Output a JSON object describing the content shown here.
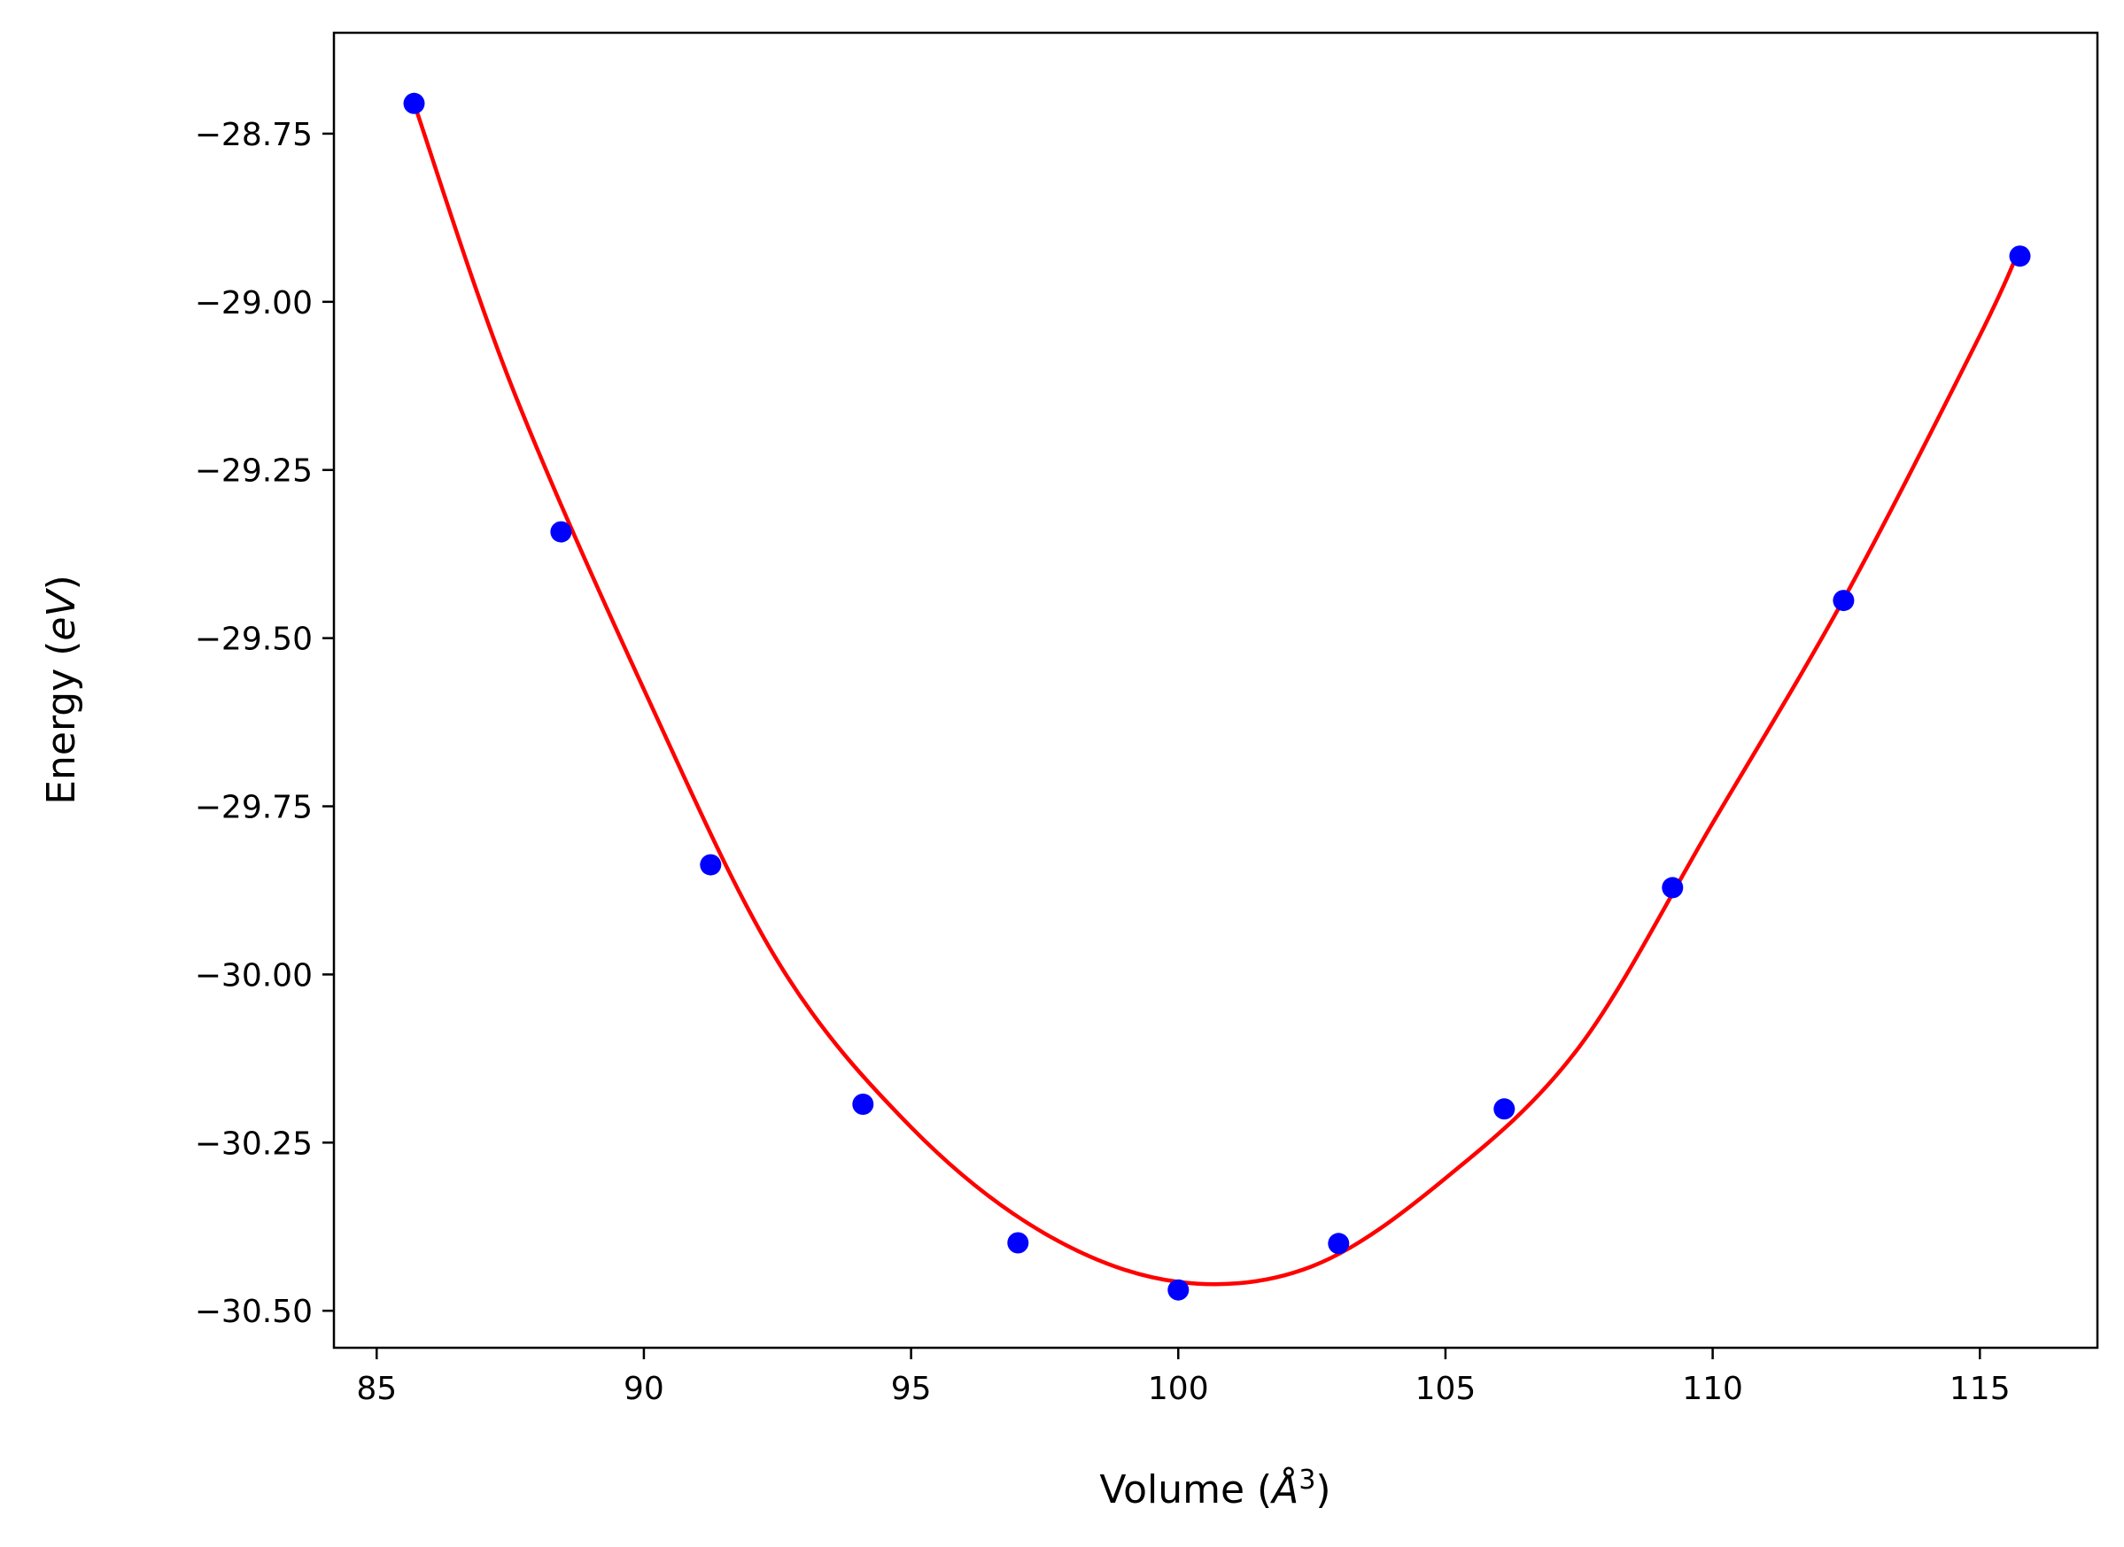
{
  "chart_data": {
    "type": "scatter",
    "title": "",
    "xlabel": "Volume (Å³)",
    "xlabel_parts": {
      "prefix": "Volume (",
      "symbol": "Å",
      "sup": "3",
      "suffix": ")"
    },
    "ylabel": "Energy (eV)",
    "ylabel_parts": {
      "prefix": "Energy (",
      "unit": "eV",
      "suffix": ")"
    },
    "xlim": [
      84.2,
      117.2
    ],
    "ylim": [
      -30.555,
      -28.6
    ],
    "x_ticks": [
      85,
      90,
      95,
      100,
      105,
      110,
      115
    ],
    "x_tick_labels": [
      "85",
      "90",
      "95",
      "100",
      "105",
      "110",
      "115"
    ],
    "y_ticks": [
      -28.75,
      -29.0,
      -29.25,
      -29.5,
      -29.75,
      -30.0,
      -30.25,
      -30.5
    ],
    "y_tick_labels": [
      "−28.75",
      "−29.00",
      "−29.25",
      "−29.50",
      "−29.75",
      "−30.00",
      "−30.25",
      "−30.50"
    ],
    "grid": false,
    "legend": "none",
    "series": [
      {
        "kind": "points",
        "color": "#0000ff",
        "x": [
          85.7,
          88.45,
          91.25,
          94.1,
          97.0,
          100.0,
          103.0,
          106.1,
          109.25,
          112.45,
          115.75
        ],
        "y": [
          -28.705,
          -29.342,
          -29.837,
          -30.193,
          -30.399,
          -30.469,
          -30.4,
          -30.2,
          -29.871,
          -29.444,
          -28.932
        ]
      },
      {
        "kind": "fit-curve",
        "color": "#ff0000",
        "x": [
          85.7,
          87.5,
          90.0,
          92.5,
          95.0,
          97.5,
          100.0,
          102.5,
          105.0,
          107.5,
          110.0,
          112.5,
          115.0,
          115.75
        ],
        "y": [
          -28.705,
          -29.12,
          -29.576,
          -29.98,
          -30.227,
          -30.385,
          -30.457,
          -30.434,
          -30.303,
          -30.108,
          -29.775,
          -29.435,
          -29.05,
          -28.92
        ]
      }
    ]
  }
}
